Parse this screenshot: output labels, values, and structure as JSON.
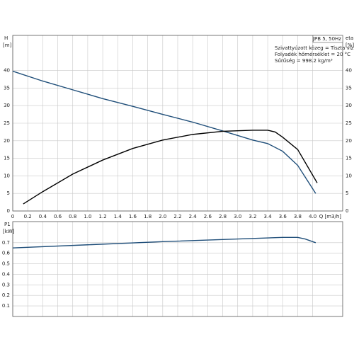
{
  "chart_data": [
    {
      "type": "line",
      "y_label": "H",
      "y_unit": "[m]",
      "y2_label": "eta",
      "y2_unit": "[%]",
      "x_label": "Q [m3/h]",
      "legend_title": "JPB 5, 50Hz",
      "notes": [
        "Szivattyúzott közeg = Tiszta víz",
        "Folyadék hőmérséklet = 20 °C",
        "Sűrűség = 998.2 kg/m³"
      ],
      "xlim": [
        0,
        4.4
      ],
      "xticks": [
        0,
        0.2,
        0.4,
        0.6,
        0.8,
        {
          "value": 1,
          "label": "1.0"
        },
        1.2,
        1.4,
        1.6,
        1.8,
        {
          "value": 2,
          "label": "2.0"
        },
        2.2,
        2.4,
        2.6,
        2.8,
        {
          "value": 3,
          "label": "3.0"
        },
        3.2,
        3.4,
        3.6,
        3.8,
        {
          "value": 4,
          "label": "4.0"
        }
      ],
      "ylim": [
        0,
        50
      ],
      "yticks": [
        0,
        5,
        10,
        15,
        20,
        25,
        30,
        35,
        40
      ],
      "y2lim": [
        0,
        50
      ],
      "y2ticks": [
        0,
        5,
        10,
        15,
        20,
        25,
        30,
        35,
        40
      ],
      "grid": true,
      "series": [
        {
          "name": "H",
          "color": "#1f4e79",
          "axis": "y",
          "x": [
            0,
            0.4,
            0.8,
            1.2,
            1.6,
            2.0,
            2.4,
            2.8,
            3.2,
            3.4,
            3.6,
            3.8,
            4.04
          ],
          "values": [
            39.8,
            37,
            34.5,
            32,
            29.8,
            27.5,
            25.3,
            22.8,
            20.2,
            19.2,
            17,
            13,
            5
          ]
        },
        {
          "name": "eta",
          "color": "#000000",
          "axis": "y2",
          "x": [
            0.14,
            0.4,
            0.8,
            1.2,
            1.6,
            2.0,
            2.4,
            2.8,
            3.2,
            3.4,
            3.5,
            3.6,
            3.8,
            4.06
          ],
          "values": [
            2,
            5.5,
            10.5,
            14.5,
            17.8,
            20.2,
            21.8,
            22.7,
            23,
            23,
            22.5,
            21,
            17.5,
            8
          ]
        }
      ]
    },
    {
      "type": "line",
      "y_label": "P1",
      "y_unit": "[kW]",
      "xlim": [
        0,
        4.4
      ],
      "xticks": [
        0,
        0.2,
        0.4,
        0.6,
        0.8,
        1,
        1.2,
        1.4,
        1.6,
        1.8,
        2,
        2.2,
        2.4,
        2.6,
        2.8,
        3,
        3.2,
        3.4,
        3.6,
        3.8,
        4
      ],
      "ylim": [
        0,
        0.9
      ],
      "yticks": [
        0.1,
        0.2,
        0.3,
        0.4,
        0.5,
        0.6,
        0.7
      ],
      "grid": true,
      "series": [
        {
          "name": "P1",
          "color": "#1f4e79",
          "axis": "y",
          "x": [
            0,
            1,
            2,
            3,
            3.6,
            3.8,
            3.9,
            4.04
          ],
          "values": [
            0.65,
            0.68,
            0.71,
            0.735,
            0.75,
            0.75,
            0.735,
            0.7
          ]
        }
      ]
    }
  ]
}
